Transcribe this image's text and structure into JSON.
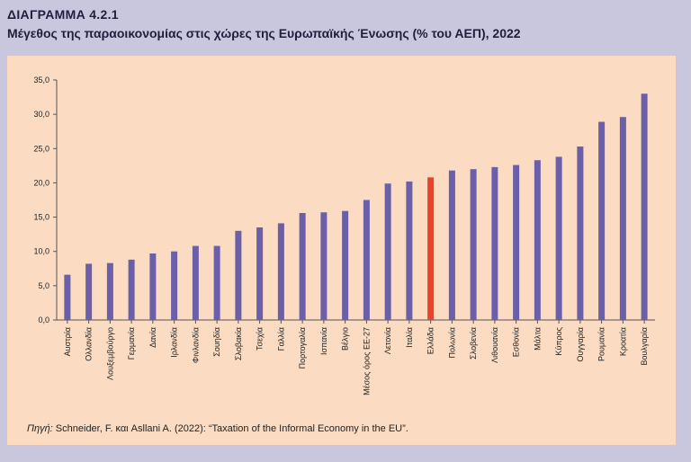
{
  "header": {
    "label": "ΔΙΑΓΡΑΜΜΑ 4.2.1",
    "title": "Μέγεθος της παραοικονομίας στις χώρες της Ευρωπαϊκής Ένωσης (% του ΑΕΠ), 2022"
  },
  "source": {
    "label": "Πηγή:",
    "text": " Schneider, F. και Asllani A. (2022): “Taxation of the Informal Economy in the EU”."
  },
  "colors": {
    "bar": "#6a5fa8",
    "highlight": "#e8432a",
    "background": "#fbdcc3",
    "frame": "#c9c7dd"
  },
  "chart_data": {
    "type": "bar",
    "title": "",
    "xlabel": "",
    "ylabel": "",
    "ylim": [
      0,
      35
    ],
    "yticks": [
      "0,0",
      "5,0",
      "10,0",
      "15,0",
      "20,0",
      "25,0",
      "30,0",
      "35,0"
    ],
    "grid": false,
    "highlight_category": "Ελλάδα",
    "categories": [
      "Αυστρία",
      "Ολλανδία",
      "Λουξεμβούργο",
      "Γερμανία",
      "Δανία",
      "Ιρλανδία",
      "Φινλανδία",
      "Σουηδία",
      "Σλοβακία",
      "Τσεχία",
      "Γαλλία",
      "Πορτογαλία",
      "Ισπανία",
      "Βέλγιο",
      "Μέσος όρος ΕΕ-27",
      "Λετονία",
      "Ιταλία",
      "Ελλάδα",
      "Πολωνία",
      "Σλοβενία",
      "Λιθουανία",
      "Εσθονία",
      "Μάλτα",
      "Κύπρος",
      "Ουγγαρία",
      "Ρουμανία",
      "Κροατία",
      "Βουλγαρία"
    ],
    "values": [
      6.6,
      8.2,
      8.3,
      8.8,
      9.7,
      10.0,
      10.8,
      10.8,
      13.0,
      13.5,
      14.1,
      15.6,
      15.7,
      15.9,
      17.5,
      19.9,
      20.2,
      20.8,
      21.8,
      22.0,
      22.3,
      22.6,
      23.3,
      23.8,
      25.3,
      28.9,
      29.6,
      33.0
    ]
  }
}
